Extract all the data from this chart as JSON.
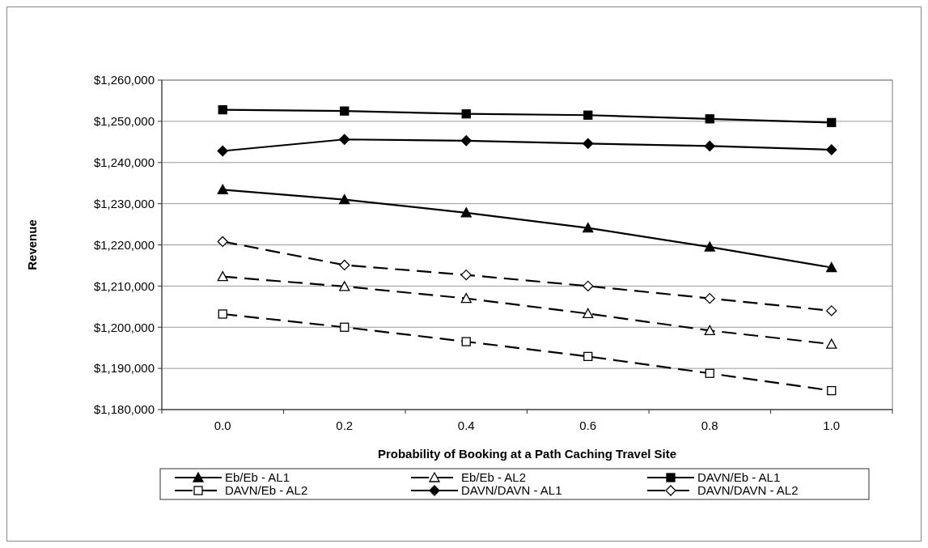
{
  "chart_data": {
    "type": "line",
    "xlabel": "Probability of Booking at a Path Caching Travel Site",
    "ylabel": "Revenue",
    "categories": [
      "0.0",
      "0.2",
      "0.4",
      "0.6",
      "0.8",
      "1.0"
    ],
    "ylim": [
      1180000,
      1260000
    ],
    "yticks": [
      {
        "value": 1180000,
        "label": "$1,180,000"
      },
      {
        "value": 1190000,
        "label": "$1,190,000"
      },
      {
        "value": 1200000,
        "label": "$1,200,000"
      },
      {
        "value": 1210000,
        "label": "$1,210,000"
      },
      {
        "value": 1220000,
        "label": "$1,220,000"
      },
      {
        "value": 1230000,
        "label": "$1,230,000"
      },
      {
        "value": 1240000,
        "label": "$1,240,000"
      },
      {
        "value": 1250000,
        "label": "$1,250,000"
      },
      {
        "value": 1260000,
        "label": "$1,260,000"
      }
    ],
    "grid": "y",
    "legend": "bottom",
    "series": [
      {
        "name": "Eb/Eb - AL1",
        "color": "#000000",
        "marker": "triangle",
        "line_style": "solid",
        "values": [
          1233400,
          1231000,
          1227800,
          1224100,
          1219500,
          1214500
        ]
      },
      {
        "name": "Eb/Eb - AL2",
        "color": "#000000",
        "marker": "triangle",
        "line_style": "dashed",
        "values": [
          1212300,
          1209900,
          1207000,
          1203300,
          1199200,
          1195900
        ]
      },
      {
        "name": "DAVN/Eb - AL1",
        "color": "#000000",
        "marker": "square",
        "line_style": "solid",
        "values": [
          1252800,
          1252500,
          1251800,
          1251500,
          1250600,
          1249700
        ]
      },
      {
        "name": "DAVN/Eb - AL2",
        "color": "#000000",
        "marker": "square",
        "line_style": "dashed",
        "values": [
          1203200,
          1200000,
          1196500,
          1192900,
          1188800,
          1184600
        ]
      },
      {
        "name": "DAVN/DAVN - AL1",
        "color": "#000000",
        "marker": "diamond",
        "line_style": "solid",
        "values": [
          1242800,
          1245600,
          1245300,
          1244600,
          1244000,
          1243100
        ]
      },
      {
        "name": "DAVN/DAVN - AL2",
        "color": "#000000",
        "marker": "diamond",
        "line_style": "dashed",
        "values": [
          1220800,
          1215100,
          1212700,
          1210000,
          1207000,
          1204000
        ]
      }
    ]
  }
}
